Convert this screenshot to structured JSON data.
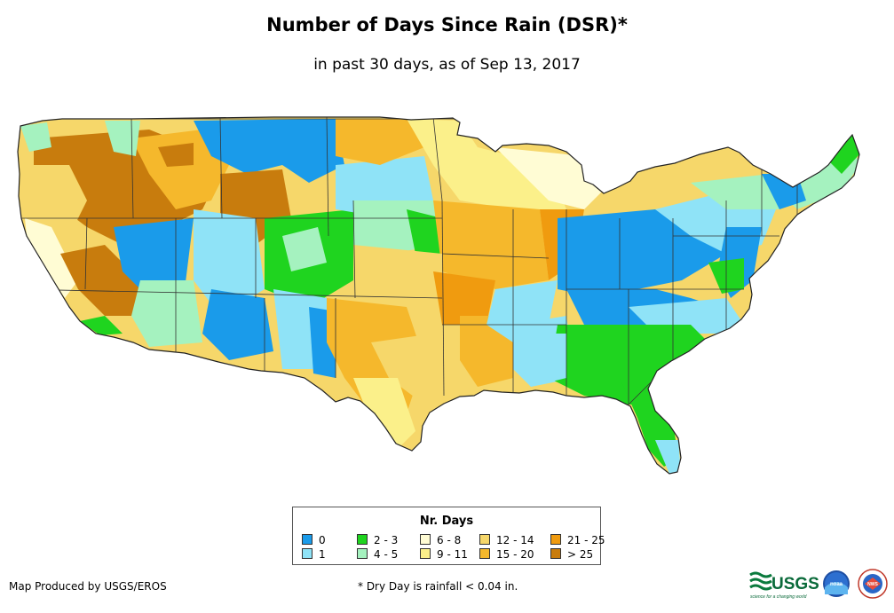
{
  "title": "Number of Days Since Rain (DSR)*",
  "subtitle": "in past 30 days, as of Sep 13, 2017",
  "legend": {
    "title": "Nr. Days",
    "items": [
      {
        "label": "0",
        "color": "#1a9bea"
      },
      {
        "label": "1",
        "color": "#8fe3f7"
      },
      {
        "label": "2 - 3",
        "color": "#1fd41f"
      },
      {
        "label": "4 - 5",
        "color": "#a5f2bf"
      },
      {
        "label": "6 - 8",
        "color": "#fffcd4"
      },
      {
        "label": "9 - 11",
        "color": "#fbf08a"
      },
      {
        "label": "12 - 14",
        "color": "#f6d76a"
      },
      {
        "label": "15 - 20",
        "color": "#f5b82c"
      },
      {
        "label": "21 - 25",
        "color": "#f09b0f"
      },
      {
        "label": "> 25",
        "color": "#c87c0d"
      }
    ]
  },
  "footer": {
    "producer": "Map Produced by USGS/EROS",
    "note": "* Dry Day is rainfall < 0.04 in."
  },
  "logos": {
    "usgs": "USGS",
    "usgs_tagline": "science for a changing world",
    "noaa": "noaa",
    "nws": "NWS"
  }
}
